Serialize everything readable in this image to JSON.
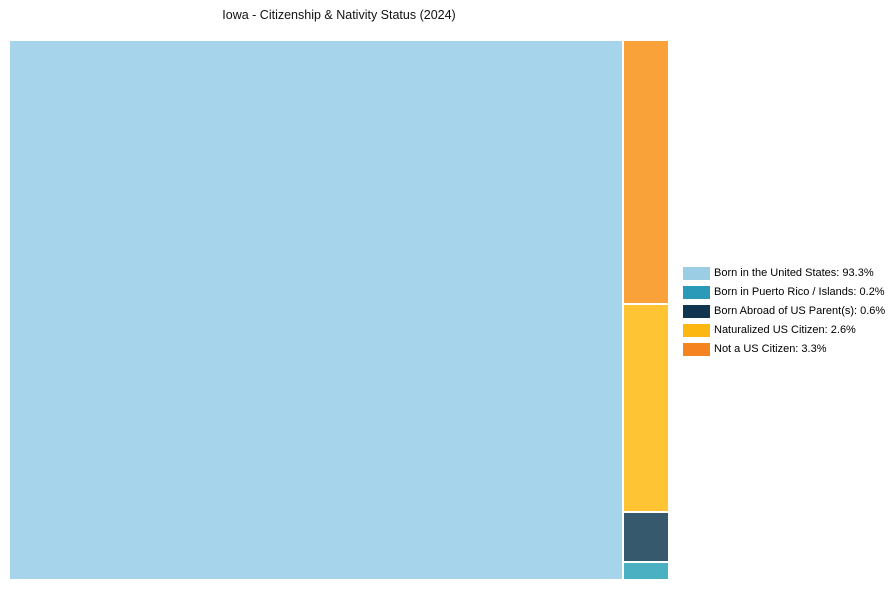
{
  "title": "Iowa - Citizenship & Nativity Status (2024)",
  "chart_data": {
    "type": "treemap",
    "title": "Iowa - Citizenship & Nativity Status (2024)",
    "unit": "%",
    "total_percent": 100,
    "legend_position": "right-middle",
    "background_color": "#ffffff",
    "categories": [
      {
        "slug": "born-us",
        "label": "Born in the United States",
        "value": 93.3,
        "label_display": "Born in the United States: 93.3%",
        "legend_color": "#9bcde4",
        "tile_color": "#a6d4ea"
      },
      {
        "slug": "puerto-rico",
        "label": "Born in Puerto Rico / Islands",
        "value": 0.2,
        "label_display": "Born in Puerto Rico / Islands: 0.2%",
        "legend_color": "#2b9ab8",
        "tile_color": "#4ab0c2"
      },
      {
        "slug": "born-abroad",
        "label": "Born Abroad of US Parent(s)",
        "value": 0.6,
        "label_display": "Born Abroad of US Parent(s): 0.6%",
        "legend_color": "#11344f",
        "tile_color": "#36596d"
      },
      {
        "slug": "naturalized",
        "label": "Naturalized US Citizen",
        "value": 2.6,
        "label_display": "Naturalized US Citizen: 2.6%",
        "legend_color": "#fdb713",
        "tile_color": "#fec433"
      },
      {
        "slug": "not-citizen",
        "label": "Not a US Citizen",
        "value": 3.3,
        "label_display": "Not a US Citizen: 3.3%",
        "legend_color": "#f5831f",
        "tile_color": "#f9a23a"
      }
    ],
    "layout": {
      "main_tile": "born-us",
      "minor_column_top_to_bottom": [
        "not-citizen",
        "naturalized",
        "born-abroad",
        "puerto-rico"
      ]
    }
  }
}
